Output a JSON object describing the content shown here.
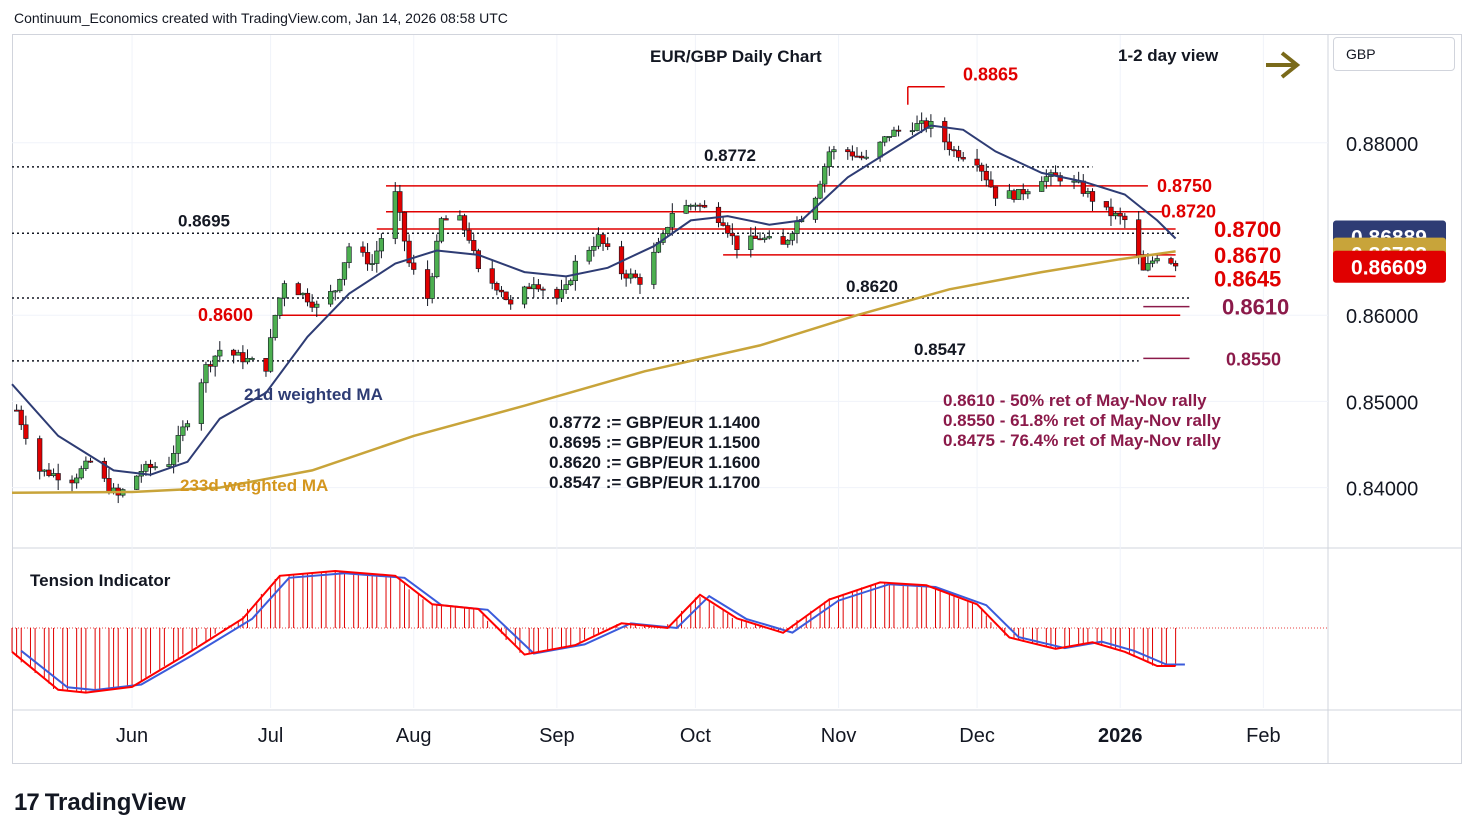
{
  "header": {
    "attribution": "Continuum_Economics created with TradingView.com, Jan 14, 2026 08:58 UTC"
  },
  "currency_selector": {
    "label": "GBP"
  },
  "branding": {
    "logo_mark": "17",
    "logo_text": "TradingView"
  },
  "annotations": {
    "title": "EUR/GBP Daily Chart",
    "view": "1-2 day view",
    "ma21_label": "21d weighted MA",
    "ma233_label": "233d weighted MA",
    "tension_title": "Tension Indicator",
    "conversions": [
      "0.8772 := GBP/EUR 1.1400",
      "0.8695 := GBP/EUR 1.1500",
      "0.8620 := GBP/EUR 1.1600",
      "0.8547 := GBP/EUR 1.1700"
    ],
    "retracements": [
      "0.8610 - 50% ret of May-Nov rally",
      "0.8550 - 61.8% ret of May-Nov rally",
      "0.8475 - 76.4% ret of May-Nov rally"
    ]
  },
  "chart_data": {
    "type": "candlestick",
    "title": "EUR/GBP Daily Chart",
    "y_axis": {
      "ticks": [
        "0.88000",
        "0.86000",
        "0.85000",
        "0.84000"
      ],
      "range": [
        0.833,
        0.8925
      ]
    },
    "x_axis": {
      "ticks": [
        "Jun",
        "Jul",
        "Aug",
        "Sep",
        "Oct",
        "Nov",
        "Dec",
        "2026",
        "Feb"
      ],
      "range": [
        "2025-05-06",
        "2026-02-15"
      ]
    },
    "price_badges": [
      {
        "value": "0.86889",
        "color": "#2e3c74"
      },
      {
        "value": "0.86738",
        "color": "#c8a43a"
      },
      {
        "value": "0.86609",
        "color": "#e00000"
      }
    ],
    "levels": [
      {
        "label": "0.8865",
        "value": 0.8865,
        "color": "#e00000"
      },
      {
        "label": "0.8772",
        "value": 0.8772,
        "color": "#131722"
      },
      {
        "label": "0.8750",
        "value": 0.875,
        "color": "#e00000"
      },
      {
        "label": "0.8720",
        "value": 0.872,
        "color": "#e00000"
      },
      {
        "label": "0.8700",
        "value": 0.87,
        "color": "#e00000"
      },
      {
        "label": "0.8695",
        "value": 0.8695,
        "color": "#131722"
      },
      {
        "label": "0.8670",
        "value": 0.867,
        "color": "#e00000"
      },
      {
        "label": "0.8645",
        "value": 0.8645,
        "color": "#e00000"
      },
      {
        "label": "0.8620",
        "value": 0.862,
        "color": "#131722"
      },
      {
        "label": "0.8610",
        "value": 0.861,
        "color": "#8b1a4a"
      },
      {
        "label": "0.8600",
        "value": 0.86,
        "color": "#e00000"
      },
      {
        "label": "0.8550",
        "value": 0.855,
        "color": "#8b1a4a"
      },
      {
        "label": "0.8547",
        "value": 0.8547,
        "color": "#131722"
      }
    ],
    "series": [
      {
        "name": "21d weighted MA",
        "color": "#2e3c74"
      },
      {
        "name": "233d weighted MA",
        "color": "#c8a43a"
      },
      {
        "name": "Tension Indicator",
        "color": "#e00000"
      }
    ],
    "colors": {
      "up": "#4caf50",
      "down": "#e00000",
      "ma21": "#2e3c74",
      "ma233": "#c8a43a",
      "tension_fast": "#ff0000",
      "tension_slow": "#3b5bdb",
      "arrow": "#7a6a1a"
    },
    "close_path": [
      [
        "2025-05-07",
        0.849
      ],
      [
        "2025-05-12",
        0.842
      ],
      [
        "2025-05-19",
        0.841
      ],
      [
        "2025-05-23",
        0.843
      ],
      [
        "2025-05-27",
        0.84
      ],
      [
        "2025-05-29",
        0.839
      ],
      [
        "2025-06-03",
        0.842
      ],
      [
        "2025-06-09",
        0.843
      ],
      [
        "2025-06-13",
        0.848
      ],
      [
        "2025-06-17",
        0.854
      ],
      [
        "2025-06-20",
        0.856
      ],
      [
        "2025-06-25",
        0.855
      ],
      [
        "2025-06-30",
        0.854
      ],
      [
        "2025-07-02",
        0.86
      ],
      [
        "2025-07-04",
        0.864
      ],
      [
        "2025-07-09",
        0.862
      ],
      [
        "2025-07-11",
        0.861
      ],
      [
        "2025-07-15",
        0.863
      ],
      [
        "2025-07-18",
        0.868
      ],
      [
        "2025-07-23",
        0.866
      ],
      [
        "2025-07-25",
        0.869
      ],
      [
        "2025-07-28",
        0.874
      ],
      [
        "2025-07-31",
        0.866
      ],
      [
        "2025-08-04",
        0.862
      ],
      [
        "2025-08-07",
        0.871
      ],
      [
        "2025-08-11",
        0.871
      ],
      [
        "2025-08-13",
        0.869
      ],
      [
        "2025-08-15",
        0.865
      ],
      [
        "2025-08-20",
        0.863
      ],
      [
        "2025-08-22",
        0.861
      ],
      [
        "2025-08-27",
        0.864
      ],
      [
        "2025-09-01",
        0.862
      ],
      [
        "2025-09-03",
        0.863
      ],
      [
        "2025-09-05",
        0.866
      ],
      [
        "2025-09-10",
        0.869
      ],
      [
        "2025-09-15",
        0.865
      ],
      [
        "2025-09-19",
        0.864
      ],
      [
        "2025-09-24",
        0.869
      ],
      [
        "2025-09-26",
        0.872
      ],
      [
        "2025-10-01",
        0.873
      ],
      [
        "2025-10-07",
        0.871
      ],
      [
        "2025-10-10",
        0.868
      ],
      [
        "2025-10-15",
        0.869
      ],
      [
        "2025-10-20",
        0.868
      ],
      [
        "2025-10-22",
        0.87
      ],
      [
        "2025-10-27",
        0.874
      ],
      [
        "2025-10-30",
        0.879
      ],
      [
        "2025-11-03",
        0.879
      ],
      [
        "2025-11-07",
        0.878
      ],
      [
        "2025-11-12",
        0.881
      ],
      [
        "2025-11-17",
        0.882
      ],
      [
        "2025-11-21",
        0.882
      ],
      [
        "2025-11-26",
        0.879
      ],
      [
        "2025-12-01",
        0.878
      ],
      [
        "2025-12-05",
        0.874
      ],
      [
        "2025-12-10",
        0.874
      ],
      [
        "2025-12-15",
        0.876
      ],
      [
        "2025-12-19",
        0.876
      ],
      [
        "2025-12-23",
        0.875
      ],
      [
        "2025-12-29",
        0.872
      ],
      [
        "2026-01-02",
        0.871
      ],
      [
        "2026-01-06",
        0.865
      ],
      [
        "2026-01-09",
        0.867
      ],
      [
        "2026-01-13",
        0.8661
      ]
    ],
    "ma21_path": [
      [
        "2025-05-06",
        0.852
      ],
      [
        "2025-05-16",
        0.846
      ],
      [
        "2025-05-28",
        0.842
      ],
      [
        "2025-06-05",
        0.8415
      ],
      [
        "2025-06-13",
        0.843
      ],
      [
        "2025-06-20",
        0.848
      ],
      [
        "2025-06-30",
        0.851
      ],
      [
        "2025-07-09",
        0.8575
      ],
      [
        "2025-07-18",
        0.8625
      ],
      [
        "2025-07-28",
        0.866
      ],
      [
        "2025-08-06",
        0.8675
      ],
      [
        "2025-08-15",
        0.867
      ],
      [
        "2025-08-25",
        0.865
      ],
      [
        "2025-09-03",
        0.8645
      ],
      [
        "2025-09-12",
        0.8655
      ],
      [
        "2025-09-22",
        0.868
      ],
      [
        "2025-09-30",
        0.871
      ],
      [
        "2025-10-08",
        0.8715
      ],
      [
        "2025-10-17",
        0.8705
      ],
      [
        "2025-10-24",
        0.871
      ],
      [
        "2025-11-03",
        0.876
      ],
      [
        "2025-11-12",
        0.879
      ],
      [
        "2025-11-21",
        0.882
      ],
      [
        "2025-11-28",
        0.8815
      ],
      [
        "2025-12-05",
        0.879
      ],
      [
        "2025-12-15",
        0.8765
      ],
      [
        "2025-12-24",
        0.8755
      ],
      [
        "2026-01-02",
        0.874
      ],
      [
        "2026-01-09",
        0.871
      ],
      [
        "2026-01-13",
        0.8689
      ]
    ],
    "ma233_path": [
      [
        "2025-05-06",
        0.8394
      ],
      [
        "2025-06-01",
        0.8395
      ],
      [
        "2025-06-20",
        0.84
      ],
      [
        "2025-07-10",
        0.842
      ],
      [
        "2025-08-01",
        0.846
      ],
      [
        "2025-08-25",
        0.8495
      ],
      [
        "2025-09-20",
        0.8535
      ],
      [
        "2025-10-15",
        0.8565
      ],
      [
        "2025-11-05",
        0.86
      ],
      [
        "2025-11-25",
        0.863
      ],
      [
        "2025-12-15",
        0.865
      ],
      [
        "2026-01-01",
        0.8665
      ],
      [
        "2026-01-13",
        0.8674
      ]
    ],
    "tension_path": [
      [
        "2025-05-06",
        -0.25
      ],
      [
        "2025-05-16",
        -0.65
      ],
      [
        "2025-05-22",
        -0.68
      ],
      [
        "2025-06-01",
        -0.62
      ],
      [
        "2025-06-12",
        -0.3
      ],
      [
        "2025-06-25",
        0.1
      ],
      [
        "2025-07-03",
        0.55
      ],
      [
        "2025-07-15",
        0.6
      ],
      [
        "2025-07-28",
        0.55
      ],
      [
        "2025-08-05",
        0.25
      ],
      [
        "2025-08-15",
        0.2
      ],
      [
        "2025-08-25",
        -0.28
      ],
      [
        "2025-09-05",
        -0.18
      ],
      [
        "2025-09-15",
        0.05
      ],
      [
        "2025-09-25",
        0.0
      ],
      [
        "2025-10-02",
        0.35
      ],
      [
        "2025-10-10",
        0.1
      ],
      [
        "2025-10-20",
        -0.05
      ],
      [
        "2025-10-30",
        0.3
      ],
      [
        "2025-11-10",
        0.48
      ],
      [
        "2025-11-20",
        0.45
      ],
      [
        "2025-12-01",
        0.25
      ],
      [
        "2025-12-08",
        -0.1
      ],
      [
        "2025-12-18",
        -0.22
      ],
      [
        "2025-12-26",
        -0.15
      ],
      [
        "2026-01-02",
        -0.25
      ],
      [
        "2026-01-09",
        -0.4
      ],
      [
        "2026-01-13",
        -0.4
      ]
    ]
  }
}
